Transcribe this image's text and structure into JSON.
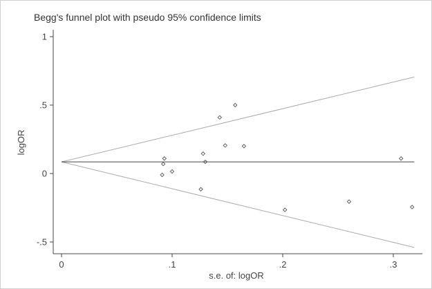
{
  "chart_data": {
    "type": "scatter",
    "title": "Begg's funnel plot with pseudo 95% confidence limits",
    "xlabel": "s.e. of: logOR",
    "ylabel": "logOR",
    "xlim": [
      0,
      0.32
    ],
    "ylim": [
      -0.5,
      1
    ],
    "x_ticks": [
      {
        "value": 0,
        "label": "0"
      },
      {
        "value": 0.1,
        "label": ".1"
      },
      {
        "value": 0.2,
        "label": ".2"
      },
      {
        "value": 0.3,
        "label": ".3"
      }
    ],
    "y_ticks": [
      {
        "value": 1,
        "label": "1"
      },
      {
        "value": 0.5,
        "label": ".5"
      },
      {
        "value": 0,
        "label": "0"
      },
      {
        "value": -0.5,
        "label": "-.5"
      }
    ],
    "pooled_estimate": 0.085,
    "confidence_limits": {
      "upper": [
        [
          0,
          0.085
        ],
        [
          0.319,
          0.705
        ]
      ],
      "lower": [
        [
          0,
          0.085
        ],
        [
          0.319,
          -0.54
        ]
      ]
    },
    "points": [
      {
        "x": 0.091,
        "y": -0.01
      },
      {
        "x": 0.092,
        "y": 0.07
      },
      {
        "x": 0.093,
        "y": 0.11
      },
      {
        "x": 0.1,
        "y": 0.015
      },
      {
        "x": 0.126,
        "y": -0.115
      },
      {
        "x": 0.128,
        "y": 0.145
      },
      {
        "x": 0.13,
        "y": 0.085
      },
      {
        "x": 0.143,
        "y": 0.41
      },
      {
        "x": 0.148,
        "y": 0.205
      },
      {
        "x": 0.157,
        "y": 0.5
      },
      {
        "x": 0.165,
        "y": 0.2
      },
      {
        "x": 0.202,
        "y": -0.265
      },
      {
        "x": 0.26,
        "y": -0.205
      },
      {
        "x": 0.307,
        "y": 0.11
      },
      {
        "x": 0.317,
        "y": -0.245
      }
    ],
    "colors": {
      "points": "#555555",
      "pooled_line": "#444444",
      "limit_lines": "#aaaaaa",
      "axes": "#444444"
    }
  }
}
